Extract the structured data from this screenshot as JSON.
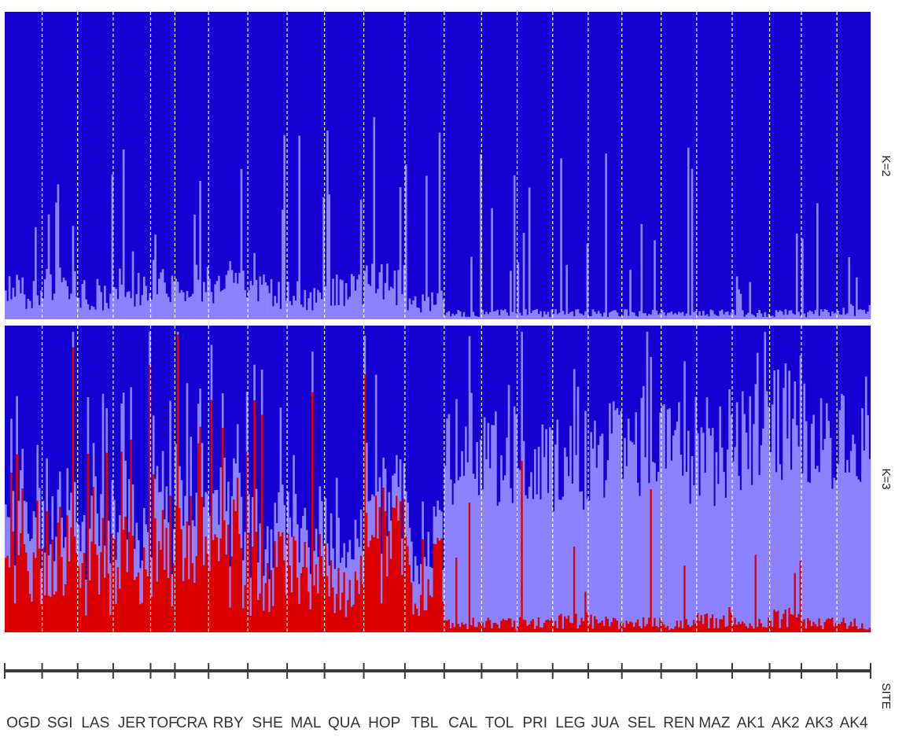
{
  "chart_data": {
    "type": "bar",
    "stacked": true,
    "normalized": true,
    "grid": false,
    "legend": "none",
    "colors": {
      "dark_blue": "#1400d2",
      "light_blue": "#8c82ff",
      "red": "#dc0000",
      "separator": "#ffffff",
      "axis": "#3a3a3a"
    },
    "axis_title": "SITE",
    "ylim": [
      0,
      1
    ],
    "sites": [
      {
        "code": "OGD",
        "n": 20,
        "k2_light": 0.09,
        "k3_red": 0.22,
        "k3_light": 0.16
      },
      {
        "code": "SGI",
        "n": 19,
        "k2_light": 0.11,
        "k3_red": 0.26,
        "k3_light": 0.14
      },
      {
        "code": "LAS",
        "n": 19,
        "k2_light": 0.08,
        "k3_red": 0.2,
        "k3_light": 0.15
      },
      {
        "code": "JER",
        "n": 20,
        "k2_light": 0.1,
        "k3_red": 0.22,
        "k3_light": 0.14
      },
      {
        "code": "TOF",
        "n": 13,
        "k2_light": 0.12,
        "k3_red": 0.25,
        "k3_light": 0.15
      },
      {
        "code": "CRA",
        "n": 18,
        "k2_light": 0.13,
        "k3_red": 0.28,
        "k3_light": 0.16
      },
      {
        "code": "RBY",
        "n": 21,
        "k2_light": 0.12,
        "k3_red": 0.27,
        "k3_light": 0.16
      },
      {
        "code": "SHE",
        "n": 21,
        "k2_light": 0.09,
        "k3_red": 0.2,
        "k3_light": 0.14
      },
      {
        "code": "MAL",
        "n": 20,
        "k2_light": 0.08,
        "k3_red": 0.2,
        "k3_light": 0.14
      },
      {
        "code": "QUA",
        "n": 21,
        "k2_light": 0.09,
        "k3_red": 0.18,
        "k3_light": 0.13
      },
      {
        "code": "HOP",
        "n": 22,
        "k2_light": 0.11,
        "k3_red": 0.3,
        "k3_light": 0.12
      },
      {
        "code": "TBL",
        "n": 21,
        "k2_light": 0.06,
        "k3_red": 0.2,
        "k3_light": 0.12
      },
      {
        "code": "CAL",
        "n": 20,
        "k2_light": 0.02,
        "k3_red": 0.03,
        "k3_light": 0.55
      },
      {
        "code": "TOL",
        "n": 19,
        "k2_light": 0.02,
        "k3_red": 0.03,
        "k3_light": 0.54
      },
      {
        "code": "PRI",
        "n": 19,
        "k2_light": 0.02,
        "k3_red": 0.03,
        "k3_light": 0.53
      },
      {
        "code": "LEG",
        "n": 19,
        "k2_light": 0.02,
        "k3_red": 0.04,
        "k3_light": 0.52
      },
      {
        "code": "JUA",
        "n": 18,
        "k2_light": 0.02,
        "k3_red": 0.04,
        "k3_light": 0.56
      },
      {
        "code": "SEL",
        "n": 21,
        "k2_light": 0.02,
        "k3_red": 0.03,
        "k3_light": 0.58
      },
      {
        "code": "REN",
        "n": 19,
        "k2_light": 0.02,
        "k3_red": 0.03,
        "k3_light": 0.57
      },
      {
        "code": "MAZ",
        "n": 19,
        "k2_light": 0.02,
        "k3_red": 0.04,
        "k3_light": 0.56
      },
      {
        "code": "AK1",
        "n": 20,
        "k2_light": 0.02,
        "k3_red": 0.03,
        "k3_light": 0.6
      },
      {
        "code": "AK2",
        "n": 17,
        "k2_light": 0.02,
        "k3_red": 0.05,
        "k3_light": 0.62
      },
      {
        "code": "AK3",
        "n": 19,
        "k2_light": 0.02,
        "k3_red": 0.03,
        "k3_light": 0.6
      },
      {
        "code": "AK4",
        "n": 18,
        "k2_light": 0.03,
        "k3_red": 0.03,
        "k3_light": 0.58
      }
    ],
    "facets": [
      {
        "label": "K=2",
        "layers": [
          "light_blue",
          "dark_blue"
        ]
      },
      {
        "label": "K=3",
        "layers": [
          "red",
          "light_blue",
          "dark_blue"
        ]
      }
    ]
  }
}
